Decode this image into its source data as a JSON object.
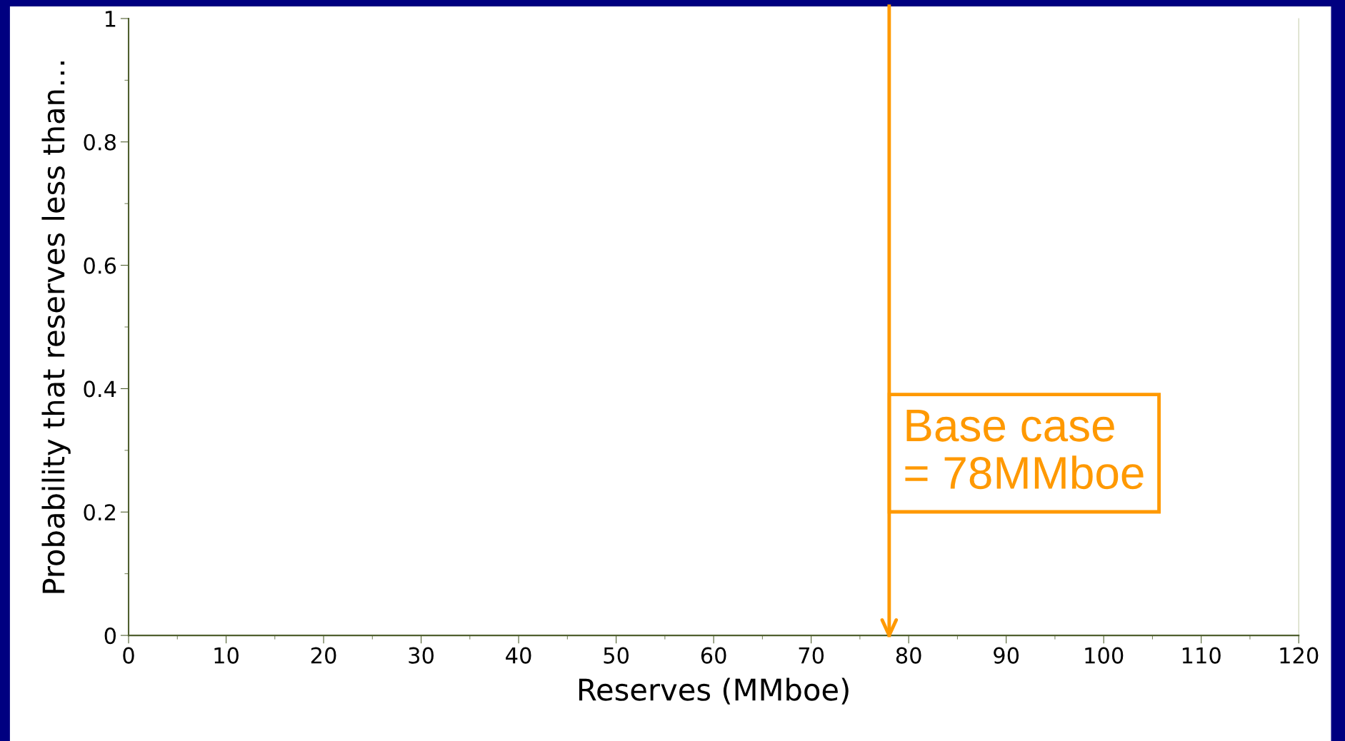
{
  "chart_data": {
    "type": "line",
    "xlabel": "Reserves (MMboe)",
    "ylabel": "Probability that reserves less than…",
    "xlim": [
      0,
      120
    ],
    "xticks": [
      0,
      10,
      20,
      30,
      40,
      50,
      60,
      70,
      80,
      90,
      100,
      110,
      120
    ],
    "ylim": [
      0,
      1
    ],
    "yticks": [
      0,
      0.2,
      0.4,
      0.6,
      0.8,
      1
    ],
    "ref_lines": [
      {
        "axis": "x",
        "value": 78,
        "label": "Base case\n= 78MMboe",
        "color": "#ff9900"
      }
    ],
    "grid": false
  }
}
